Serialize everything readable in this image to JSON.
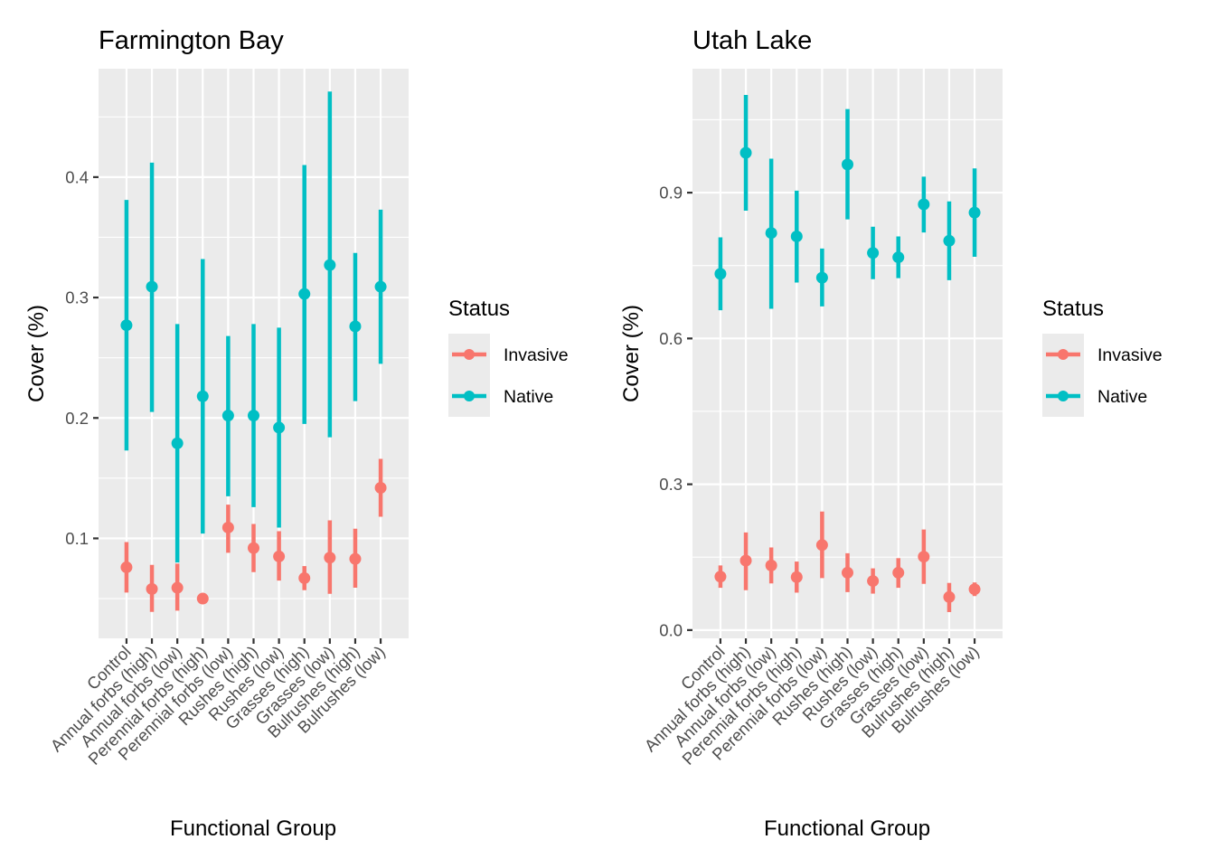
{
  "chart_data": [
    {
      "type": "pointrange",
      "title": "Farmington Bay",
      "xlabel": "Functional Group",
      "ylabel": "Cover (%)",
      "categories": [
        "Control",
        "Annual forbs (high)",
        "Annual forbs (low)",
        "Perennial forbs (high)",
        "Perennial forbs (low)",
        "Rushes (high)",
        "Rushes (low)",
        "Grasses (high)",
        "Grasses (low)",
        "Bulrushes (high)",
        "Bulrushes (low)"
      ],
      "ylim": [
        0.017,
        0.49
      ],
      "yticks": [
        0.1,
        0.2,
        0.3,
        0.4
      ],
      "ytick_labels": [
        "0.1",
        "0.2",
        "0.3",
        "0.4"
      ],
      "grid": true,
      "series": [
        {
          "name": "Invasive",
          "color": "#F8766D",
          "values": [
            0.076,
            0.058,
            0.059,
            0.05,
            0.109,
            0.092,
            0.085,
            0.067,
            0.084,
            0.083,
            0.142
          ],
          "lower": [
            0.055,
            0.039,
            0.04,
            0.047,
            0.088,
            0.072,
            0.065,
            0.057,
            0.054,
            0.059,
            0.118
          ],
          "upper": [
            0.097,
            0.078,
            0.079,
            0.053,
            0.128,
            0.112,
            0.106,
            0.077,
            0.115,
            0.108,
            0.166
          ]
        },
        {
          "name": "Native",
          "color": "#00BFC4",
          "values": [
            0.277,
            0.309,
            0.179,
            0.218,
            0.202,
            0.202,
            0.192,
            0.303,
            0.327,
            0.276,
            0.309
          ],
          "lower": [
            0.173,
            0.205,
            0.08,
            0.104,
            0.135,
            0.126,
            0.109,
            0.195,
            0.184,
            0.214,
            0.245
          ],
          "upper": [
            0.381,
            0.412,
            0.278,
            0.332,
            0.268,
            0.278,
            0.275,
            0.41,
            0.471,
            0.337,
            0.373
          ]
        }
      ],
      "legend": {
        "title": "Status",
        "entries": [
          "Invasive",
          "Native"
        ],
        "position": "right"
      }
    },
    {
      "type": "pointrange",
      "title": "Utah Lake",
      "xlabel": "Functional Group",
      "ylabel": "Cover (%)",
      "categories": [
        "Control",
        "Annual forbs (high)",
        "Annual forbs (low)",
        "Perennial forbs (high)",
        "Perennial forbs (low)",
        "Rushes (high)",
        "Rushes (low)",
        "Grasses (high)",
        "Grasses (low)",
        "Bulrushes (high)",
        "Bulrushes (low)"
      ],
      "ylim": [
        -0.017,
        1.155
      ],
      "yticks": [
        0.0,
        0.3,
        0.6,
        0.9
      ],
      "ytick_labels": [
        "0.0",
        "0.3",
        "0.6",
        "0.9"
      ],
      "grid": true,
      "series": [
        {
          "name": "Invasive",
          "color": "#F8766D",
          "values": [
            0.11,
            0.143,
            0.133,
            0.109,
            0.175,
            0.118,
            0.101,
            0.118,
            0.151,
            0.068,
            0.084
          ],
          "lower": [
            0.087,
            0.082,
            0.096,
            0.077,
            0.107,
            0.078,
            0.075,
            0.087,
            0.095,
            0.037,
            0.07
          ],
          "upper": [
            0.133,
            0.201,
            0.17,
            0.141,
            0.244,
            0.158,
            0.127,
            0.148,
            0.207,
            0.097,
            0.098
          ]
        },
        {
          "name": "Native",
          "color": "#00BFC4",
          "values": [
            0.733,
            0.982,
            0.817,
            0.81,
            0.725,
            0.958,
            0.776,
            0.767,
            0.876,
            0.801,
            0.859
          ],
          "lower": [
            0.658,
            0.863,
            0.661,
            0.715,
            0.666,
            0.845,
            0.722,
            0.724,
            0.818,
            0.72,
            0.768
          ],
          "upper": [
            0.808,
            1.101,
            0.97,
            0.904,
            0.785,
            1.072,
            0.83,
            0.81,
            0.933,
            0.882,
            0.95
          ]
        }
      ],
      "legend": {
        "title": "Status",
        "entries": [
          "Invasive",
          "Native"
        ],
        "position": "right"
      }
    }
  ]
}
